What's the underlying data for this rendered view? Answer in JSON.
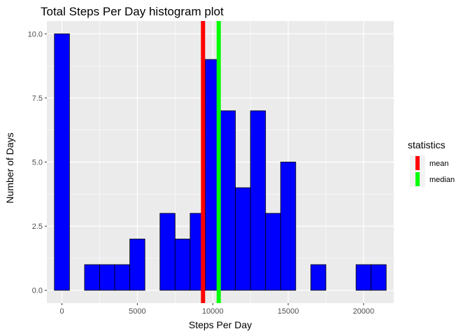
{
  "chart_data": {
    "type": "bar",
    "title": "Total Steps Per Day histogram plot",
    "xlabel": "Steps Per Day",
    "ylabel": "Number of Days",
    "xlim": [
      -1000,
      22000
    ],
    "ylim": [
      0,
      10
    ],
    "x_ticks": [
      {
        "value": 0,
        "label": "0"
      },
      {
        "value": 5000,
        "label": "5000"
      },
      {
        "value": 10000,
        "label": "10000"
      },
      {
        "value": 15000,
        "label": "15000"
      },
      {
        "value": 20000,
        "label": "20000"
      }
    ],
    "y_ticks": [
      {
        "value": 0,
        "label": "0.0"
      },
      {
        "value": 2.5,
        "label": "2.5"
      },
      {
        "value": 5,
        "label": "5.0"
      },
      {
        "value": 7.5,
        "label": "7.5"
      },
      {
        "value": 10,
        "label": "10.0"
      }
    ],
    "bin_width": 1000,
    "bin_centers": [
      0,
      1000,
      2000,
      3000,
      4000,
      5000,
      6000,
      7000,
      8000,
      9000,
      10000,
      11000,
      12000,
      13000,
      14000,
      15000,
      16000,
      17000,
      18000,
      19000,
      20000,
      21000
    ],
    "counts": [
      10,
      0,
      1,
      1,
      1,
      2,
      0,
      3,
      2,
      3,
      9,
      7,
      4,
      7,
      3,
      5,
      0,
      1,
      0,
      0,
      1,
      1
    ],
    "bar_fill": "#0000ff",
    "bar_outline": "#000000",
    "panel_background": "#ebebeb",
    "grid": true,
    "vlines": [
      {
        "name": "mean",
        "x": 9354,
        "color": "#ff0000"
      },
      {
        "name": "median",
        "x": 10395,
        "color": "#00ff00"
      }
    ],
    "legend": {
      "title": "statistics",
      "position": "right",
      "entries": [
        {
          "label": "mean",
          "color": "#ff0000"
        },
        {
          "label": "median",
          "color": "#00ff00"
        }
      ]
    }
  }
}
